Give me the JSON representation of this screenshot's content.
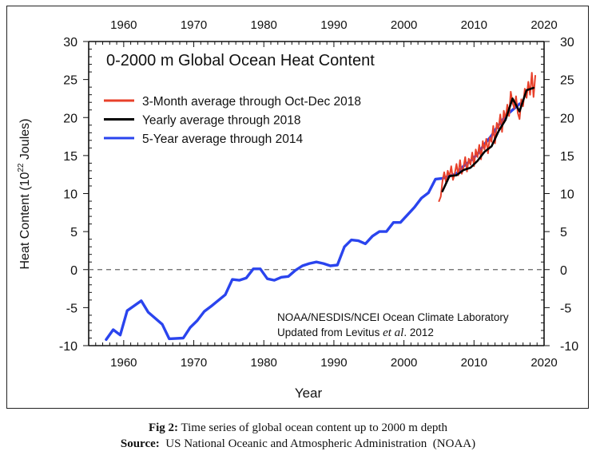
{
  "chart_data": {
    "type": "line",
    "title": "0-2000 m Global Ocean Heat Content",
    "xlabel": "Year",
    "ylabel_main": "Heat Content (10",
    "ylabel_sup": "22",
    "ylabel_tail": " Joules)",
    "xlim": [
      1955,
      2020
    ],
    "ylim": [
      -10,
      30
    ],
    "x_ticks": [
      1960,
      1970,
      1980,
      1990,
      2000,
      2010,
      2020
    ],
    "y_ticks": [
      -10,
      -5,
      0,
      5,
      10,
      15,
      20,
      25,
      30
    ],
    "zero_line": true,
    "grid": false,
    "legend_position": "top-left",
    "series": [
      {
        "name": "3-Month average through Oct-Dec 2018",
        "color": "#e8402a",
        "x": [
          2005.0,
          2005.25,
          2005.5,
          2005.75,
          2006.0,
          2006.25,
          2006.5,
          2006.75,
          2007.0,
          2007.25,
          2007.5,
          2007.75,
          2008.0,
          2008.25,
          2008.5,
          2008.75,
          2009.0,
          2009.25,
          2009.5,
          2009.75,
          2010.0,
          2010.25,
          2010.5,
          2010.75,
          2011.0,
          2011.25,
          2011.5,
          2011.75,
          2012.0,
          2012.25,
          2012.5,
          2012.75,
          2013.0,
          2013.25,
          2013.5,
          2013.75,
          2014.0,
          2014.25,
          2014.5,
          2014.75,
          2015.0,
          2015.25,
          2015.5,
          2015.75,
          2016.0,
          2016.25,
          2016.5,
          2016.75,
          2017.0,
          2017.25,
          2017.5,
          2017.75,
          2018.0,
          2018.25,
          2018.5,
          2018.75
        ],
        "values": [
          9.0,
          9.6,
          11.6,
          12.8,
          11.5,
          13.0,
          12.2,
          13.6,
          11.8,
          12.6,
          13.9,
          12.4,
          14.4,
          12.6,
          13.5,
          14.8,
          12.9,
          14.6,
          13.8,
          15.4,
          13.6,
          15.8,
          14.8,
          16.4,
          14.5,
          16.9,
          15.8,
          17.2,
          15.3,
          17.4,
          16.8,
          18.9,
          16.6,
          19.3,
          18.5,
          20.4,
          18.1,
          20.9,
          19.8,
          21.7,
          20.2,
          23.4,
          22.0,
          21.2,
          22.8,
          20.6,
          19.8,
          22.4,
          21.5,
          23.8,
          22.6,
          24.7,
          23.0,
          25.9,
          22.7,
          25.5
        ]
      },
      {
        "name": "Yearly average through 2018",
        "color": "#000000",
        "x": [
          2005.5,
          2006.5,
          2007.5,
          2008.5,
          2009.5,
          2010.5,
          2011.5,
          2012.5,
          2013.5,
          2014.5,
          2015.5,
          2016.5,
          2017.5,
          2018.5
        ],
        "values": [
          10.3,
          12.3,
          12.4,
          13.1,
          13.4,
          14.3,
          15.5,
          16.2,
          18.2,
          19.7,
          22.5,
          20.8,
          23.6,
          23.9
        ]
      },
      {
        "name": "5-Year average through 2014",
        "color": "#2a44ee",
        "x": [
          1957.5,
          1958.5,
          1959.5,
          1960.5,
          1962.5,
          1963.5,
          1965.5,
          1966.5,
          1968.5,
          1969.5,
          1970.5,
          1971.5,
          1972.5,
          1974.5,
          1975.5,
          1976.5,
          1977.5,
          1978.5,
          1979.5,
          1980.5,
          1981.5,
          1982.5,
          1983.5,
          1984.5,
          1985.5,
          1986.5,
          1987.5,
          1988.5,
          1989.5,
          1990.5,
          1991.5,
          1992.5,
          1993.5,
          1994.5,
          1995.5,
          1996.5,
          1997.5,
          1998.5,
          1999.5,
          2000.5,
          2001.5,
          2002.5,
          2003.5,
          2004.5,
          2005.5,
          2006.5,
          2007.5,
          2008.5,
          2009.5,
          2010.5,
          2011.5,
          2012.5,
          2013.5,
          2014.5,
          2016.5
        ],
        "values": [
          -9.2,
          -7.9,
          -8.6,
          -5.4,
          -4.1,
          -5.6,
          -7.2,
          -9.1,
          -9.0,
          -7.6,
          -6.7,
          -5.5,
          -4.8,
          -3.3,
          -1.3,
          -1.4,
          -1.1,
          0.1,
          0.1,
          -1.2,
          -1.4,
          -1.0,
          -0.9,
          -0.1,
          0.5,
          0.8,
          1.0,
          0.8,
          0.5,
          0.6,
          3.0,
          3.9,
          3.8,
          3.4,
          4.4,
          5.0,
          5.0,
          6.2,
          6.2,
          7.2,
          8.2,
          9.4,
          10.1,
          11.9,
          12.0,
          12.3,
          12.6,
          13.6,
          14.3,
          15.2,
          16.5,
          17.6,
          19.0,
          20.2,
          21.8
        ]
      }
    ],
    "annotations": [
      {
        "text_pre": "NOAA/NESDIS/NCEI Ocean Climate Laboratory"
      },
      {
        "text_pre": "Updated from Levitus ",
        "text_italic": "et al",
        "text_post": ". 2012"
      }
    ]
  },
  "caption": {
    "fig_label": "Fig 2:",
    "fig_text": " Time series of global ocean content up to 2000 m depth",
    "source_label": "Source:",
    "source_text": "  US National Oceanic and Atmospheric Administration  (NOAA)"
  }
}
